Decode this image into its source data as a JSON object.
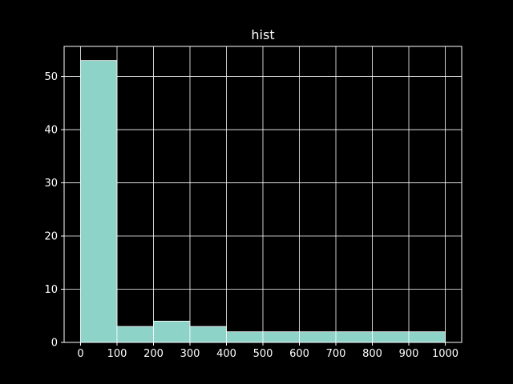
{
  "chart_data": {
    "type": "bar",
    "title": "hist",
    "xlabel": "",
    "ylabel": "",
    "bins": [
      {
        "x0": 0,
        "x1": 100,
        "count": 53
      },
      {
        "x0": 100,
        "x1": 200,
        "count": 3
      },
      {
        "x0": 200,
        "x1": 300,
        "count": 4
      },
      {
        "x0": 300,
        "x1": 400,
        "count": 3
      },
      {
        "x0": 400,
        "x1": 500,
        "count": 2
      },
      {
        "x0": 500,
        "x1": 600,
        "count": 2
      },
      {
        "x0": 600,
        "x1": 700,
        "count": 2
      },
      {
        "x0": 700,
        "x1": 800,
        "count": 2
      },
      {
        "x0": 800,
        "x1": 900,
        "count": 2
      },
      {
        "x0": 900,
        "x1": 1000,
        "count": 2
      }
    ],
    "xlim": [
      -45,
      1045
    ],
    "ylim": [
      0,
      55.65
    ],
    "x_ticks": [
      0,
      100,
      200,
      300,
      400,
      500,
      600,
      700,
      800,
      900,
      1000
    ],
    "y_ticks": [
      0,
      10,
      20,
      30,
      40,
      50
    ],
    "grid": true,
    "colors": {
      "background": "#000000",
      "bar_fill": "#8dd3c7",
      "bar_edge": "#ffffff",
      "grid": "#ffffff",
      "axis": "#ffffff",
      "text": "#ffffff"
    }
  }
}
